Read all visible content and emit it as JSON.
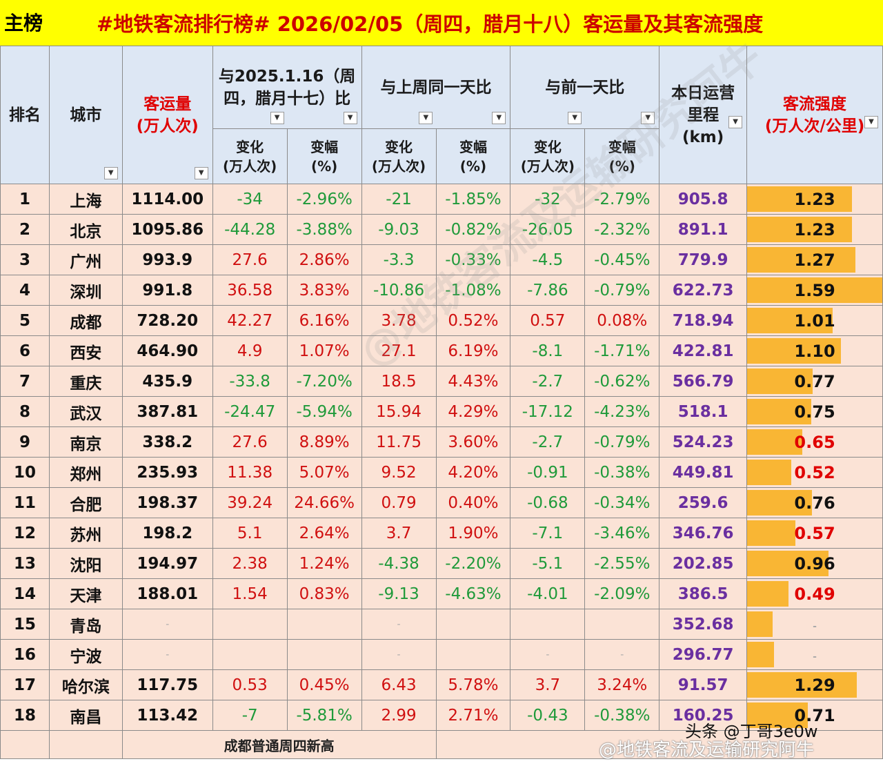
{
  "header": {
    "tag": "主榜",
    "title": "#地铁客流排行榜# 2026/02/05（周四，腊月十八）客运量及其客流强度"
  },
  "columns": {
    "rank": "排名",
    "city": "城市",
    "volume_l1": "客运量",
    "volume_l2": "(万人次)",
    "yoy_l1": "与2025.1.16（周",
    "yoy_l2": "四，腊月十七）比",
    "wow": "与上周同一天比",
    "dod": "与前一天比",
    "mileage_l1": "本日运营",
    "mileage_l2": "里程",
    "mileage_l3": "(km)",
    "intensity_l1": "客流强度",
    "intensity_l2": "(万人次/公里)",
    "change_l1": "变化",
    "change_l2": "(万人次)",
    "pct_l1": "变幅",
    "pct_l2": "(%)"
  },
  "dropdown_icon": "▼",
  "colors": {
    "bar": "#f9b634",
    "positive": "#d01010",
    "negative": "#1f9a3a",
    "mileage": "#6a2fa0",
    "header_bg": "#dde7f4",
    "row_bg": "#fbe3d6"
  },
  "intensity_max": 1.59,
  "rows": [
    {
      "rank": "1",
      "city": "上海",
      "volume": "1114.00",
      "yoy_c": "-34",
      "yoy_p": "-2.96%",
      "wow_c": "-21",
      "wow_p": "-1.85%",
      "dod_c": "-32",
      "dod_p": "-2.79%",
      "mileage": "905.8",
      "intensity": "1.23",
      "ival": 1.23,
      "ired": false
    },
    {
      "rank": "2",
      "city": "北京",
      "volume": "1095.86",
      "yoy_c": "-44.28",
      "yoy_p": "-3.88%",
      "wow_c": "-9.03",
      "wow_p": "-0.82%",
      "dod_c": "-26.05",
      "dod_p": "-2.32%",
      "mileage": "891.1",
      "intensity": "1.23",
      "ival": 1.23,
      "ired": false
    },
    {
      "rank": "3",
      "city": "广州",
      "volume": "993.9",
      "yoy_c": "27.6",
      "yoy_p": "2.86%",
      "wow_c": "-3.3",
      "wow_p": "-0.33%",
      "dod_c": "-4.5",
      "dod_p": "-0.45%",
      "mileage": "779.9",
      "intensity": "1.27",
      "ival": 1.27,
      "ired": false
    },
    {
      "rank": "4",
      "city": "深圳",
      "volume": "991.8",
      "yoy_c": "36.58",
      "yoy_p": "3.83%",
      "wow_c": "-10.86",
      "wow_p": "-1.08%",
      "dod_c": "-7.86",
      "dod_p": "-0.79%",
      "mileage": "622.73",
      "intensity": "1.59",
      "ival": 1.59,
      "ired": false
    },
    {
      "rank": "5",
      "city": "成都",
      "volume": "728.20",
      "yoy_c": "42.27",
      "yoy_p": "6.16%",
      "wow_c": "3.78",
      "wow_p": "0.52%",
      "dod_c": "0.57",
      "dod_p": "0.08%",
      "mileage": "718.94",
      "intensity": "1.01",
      "ival": 1.01,
      "ired": false
    },
    {
      "rank": "6",
      "city": "西安",
      "volume": "464.90",
      "yoy_c": "4.9",
      "yoy_p": "1.07%",
      "wow_c": "27.1",
      "wow_p": "6.19%",
      "dod_c": "-8.1",
      "dod_p": "-1.71%",
      "mileage": "422.81",
      "intensity": "1.10",
      "ival": 1.1,
      "ired": false
    },
    {
      "rank": "7",
      "city": "重庆",
      "volume": "435.9",
      "yoy_c": "-33.8",
      "yoy_p": "-7.20%",
      "wow_c": "18.5",
      "wow_p": "4.43%",
      "dod_c": "-2.7",
      "dod_p": "-0.62%",
      "mileage": "566.79",
      "intensity": "0.77",
      "ival": 0.77,
      "ired": false
    },
    {
      "rank": "8",
      "city": "武汉",
      "volume": "387.81",
      "yoy_c": "-24.47",
      "yoy_p": "-5.94%",
      "wow_c": "15.94",
      "wow_p": "4.29%",
      "dod_c": "-17.12",
      "dod_p": "-4.23%",
      "mileage": "518.1",
      "intensity": "0.75",
      "ival": 0.75,
      "ired": false
    },
    {
      "rank": "9",
      "city": "南京",
      "volume": "338.2",
      "yoy_c": "27.6",
      "yoy_p": "8.89%",
      "wow_c": "11.75",
      "wow_p": "3.60%",
      "dod_c": "-2.7",
      "dod_p": "-0.79%",
      "mileage": "524.23",
      "intensity": "0.65",
      "ival": 0.65,
      "ired": true
    },
    {
      "rank": "10",
      "city": "郑州",
      "volume": "235.93",
      "yoy_c": "11.38",
      "yoy_p": "5.07%",
      "wow_c": "9.52",
      "wow_p": "4.20%",
      "dod_c": "-0.91",
      "dod_p": "-0.38%",
      "mileage": "449.81",
      "intensity": "0.52",
      "ival": 0.52,
      "ired": true
    },
    {
      "rank": "11",
      "city": "合肥",
      "volume": "198.37",
      "yoy_c": "39.24",
      "yoy_p": "24.66%",
      "wow_c": "0.79",
      "wow_p": "0.40%",
      "dod_c": "-0.68",
      "dod_p": "-0.34%",
      "mileage": "259.6",
      "intensity": "0.76",
      "ival": 0.76,
      "ired": false
    },
    {
      "rank": "12",
      "city": "苏州",
      "volume": "198.2",
      "yoy_c": "5.1",
      "yoy_p": "2.64%",
      "wow_c": "3.7",
      "wow_p": "1.90%",
      "dod_c": "-7.1",
      "dod_p": "-3.46%",
      "mileage": "346.76",
      "intensity": "0.57",
      "ival": 0.57,
      "ired": true
    },
    {
      "rank": "13",
      "city": "沈阳",
      "volume": "194.97",
      "yoy_c": "2.38",
      "yoy_p": "1.24%",
      "wow_c": "-4.38",
      "wow_p": "-2.20%",
      "dod_c": "-5.1",
      "dod_p": "-2.55%",
      "mileage": "202.85",
      "intensity": "0.96",
      "ival": 0.96,
      "ired": false
    },
    {
      "rank": "14",
      "city": "天津",
      "volume": "188.01",
      "yoy_c": "1.54",
      "yoy_p": "0.83%",
      "wow_c": "-9.13",
      "wow_p": "-4.63%",
      "dod_c": "-4.01",
      "dod_p": "-2.09%",
      "mileage": "386.5",
      "intensity": "0.49",
      "ival": 0.49,
      "ired": true
    },
    {
      "rank": "15",
      "city": "青岛",
      "volume": "-",
      "yoy_c": "",
      "yoy_p": "",
      "wow_c": "-",
      "wow_p": "",
      "dod_c": "",
      "dod_p": "",
      "mileage": "352.68",
      "intensity": "-",
      "ival": 0.3,
      "ired": true
    },
    {
      "rank": "16",
      "city": "宁波",
      "volume": "-",
      "yoy_c": "",
      "yoy_p": "",
      "wow_c": "-",
      "wow_p": "",
      "dod_c": "-",
      "dod_p": "-",
      "mileage": "296.77",
      "intensity": "-",
      "ival": 0.32,
      "ired": true
    },
    {
      "rank": "17",
      "city": "哈尔滨",
      "volume": "117.75",
      "yoy_c": "0.53",
      "yoy_p": "0.45%",
      "wow_c": "6.43",
      "wow_p": "5.78%",
      "dod_c": "3.7",
      "dod_p": "3.24%",
      "mileage": "91.57",
      "intensity": "1.29",
      "ival": 1.29,
      "ired": false
    },
    {
      "rank": "18",
      "city": "南昌",
      "volume": "113.42",
      "yoy_c": "-7",
      "yoy_p": "-5.81%",
      "wow_c": "2.99",
      "wow_p": "2.71%",
      "dod_c": "-0.43",
      "dod_p": "-0.38%",
      "mileage": "160.25",
      "intensity": "0.71",
      "ival": 0.71,
      "ired": false
    }
  ],
  "footer_note": "成都普通周四新高",
  "watermark": "@地铁客流及运输研究阿牛",
  "credit": "头条 @丁哥3e0w",
  "credit2": "@地铁客流及运输研究阿牛"
}
